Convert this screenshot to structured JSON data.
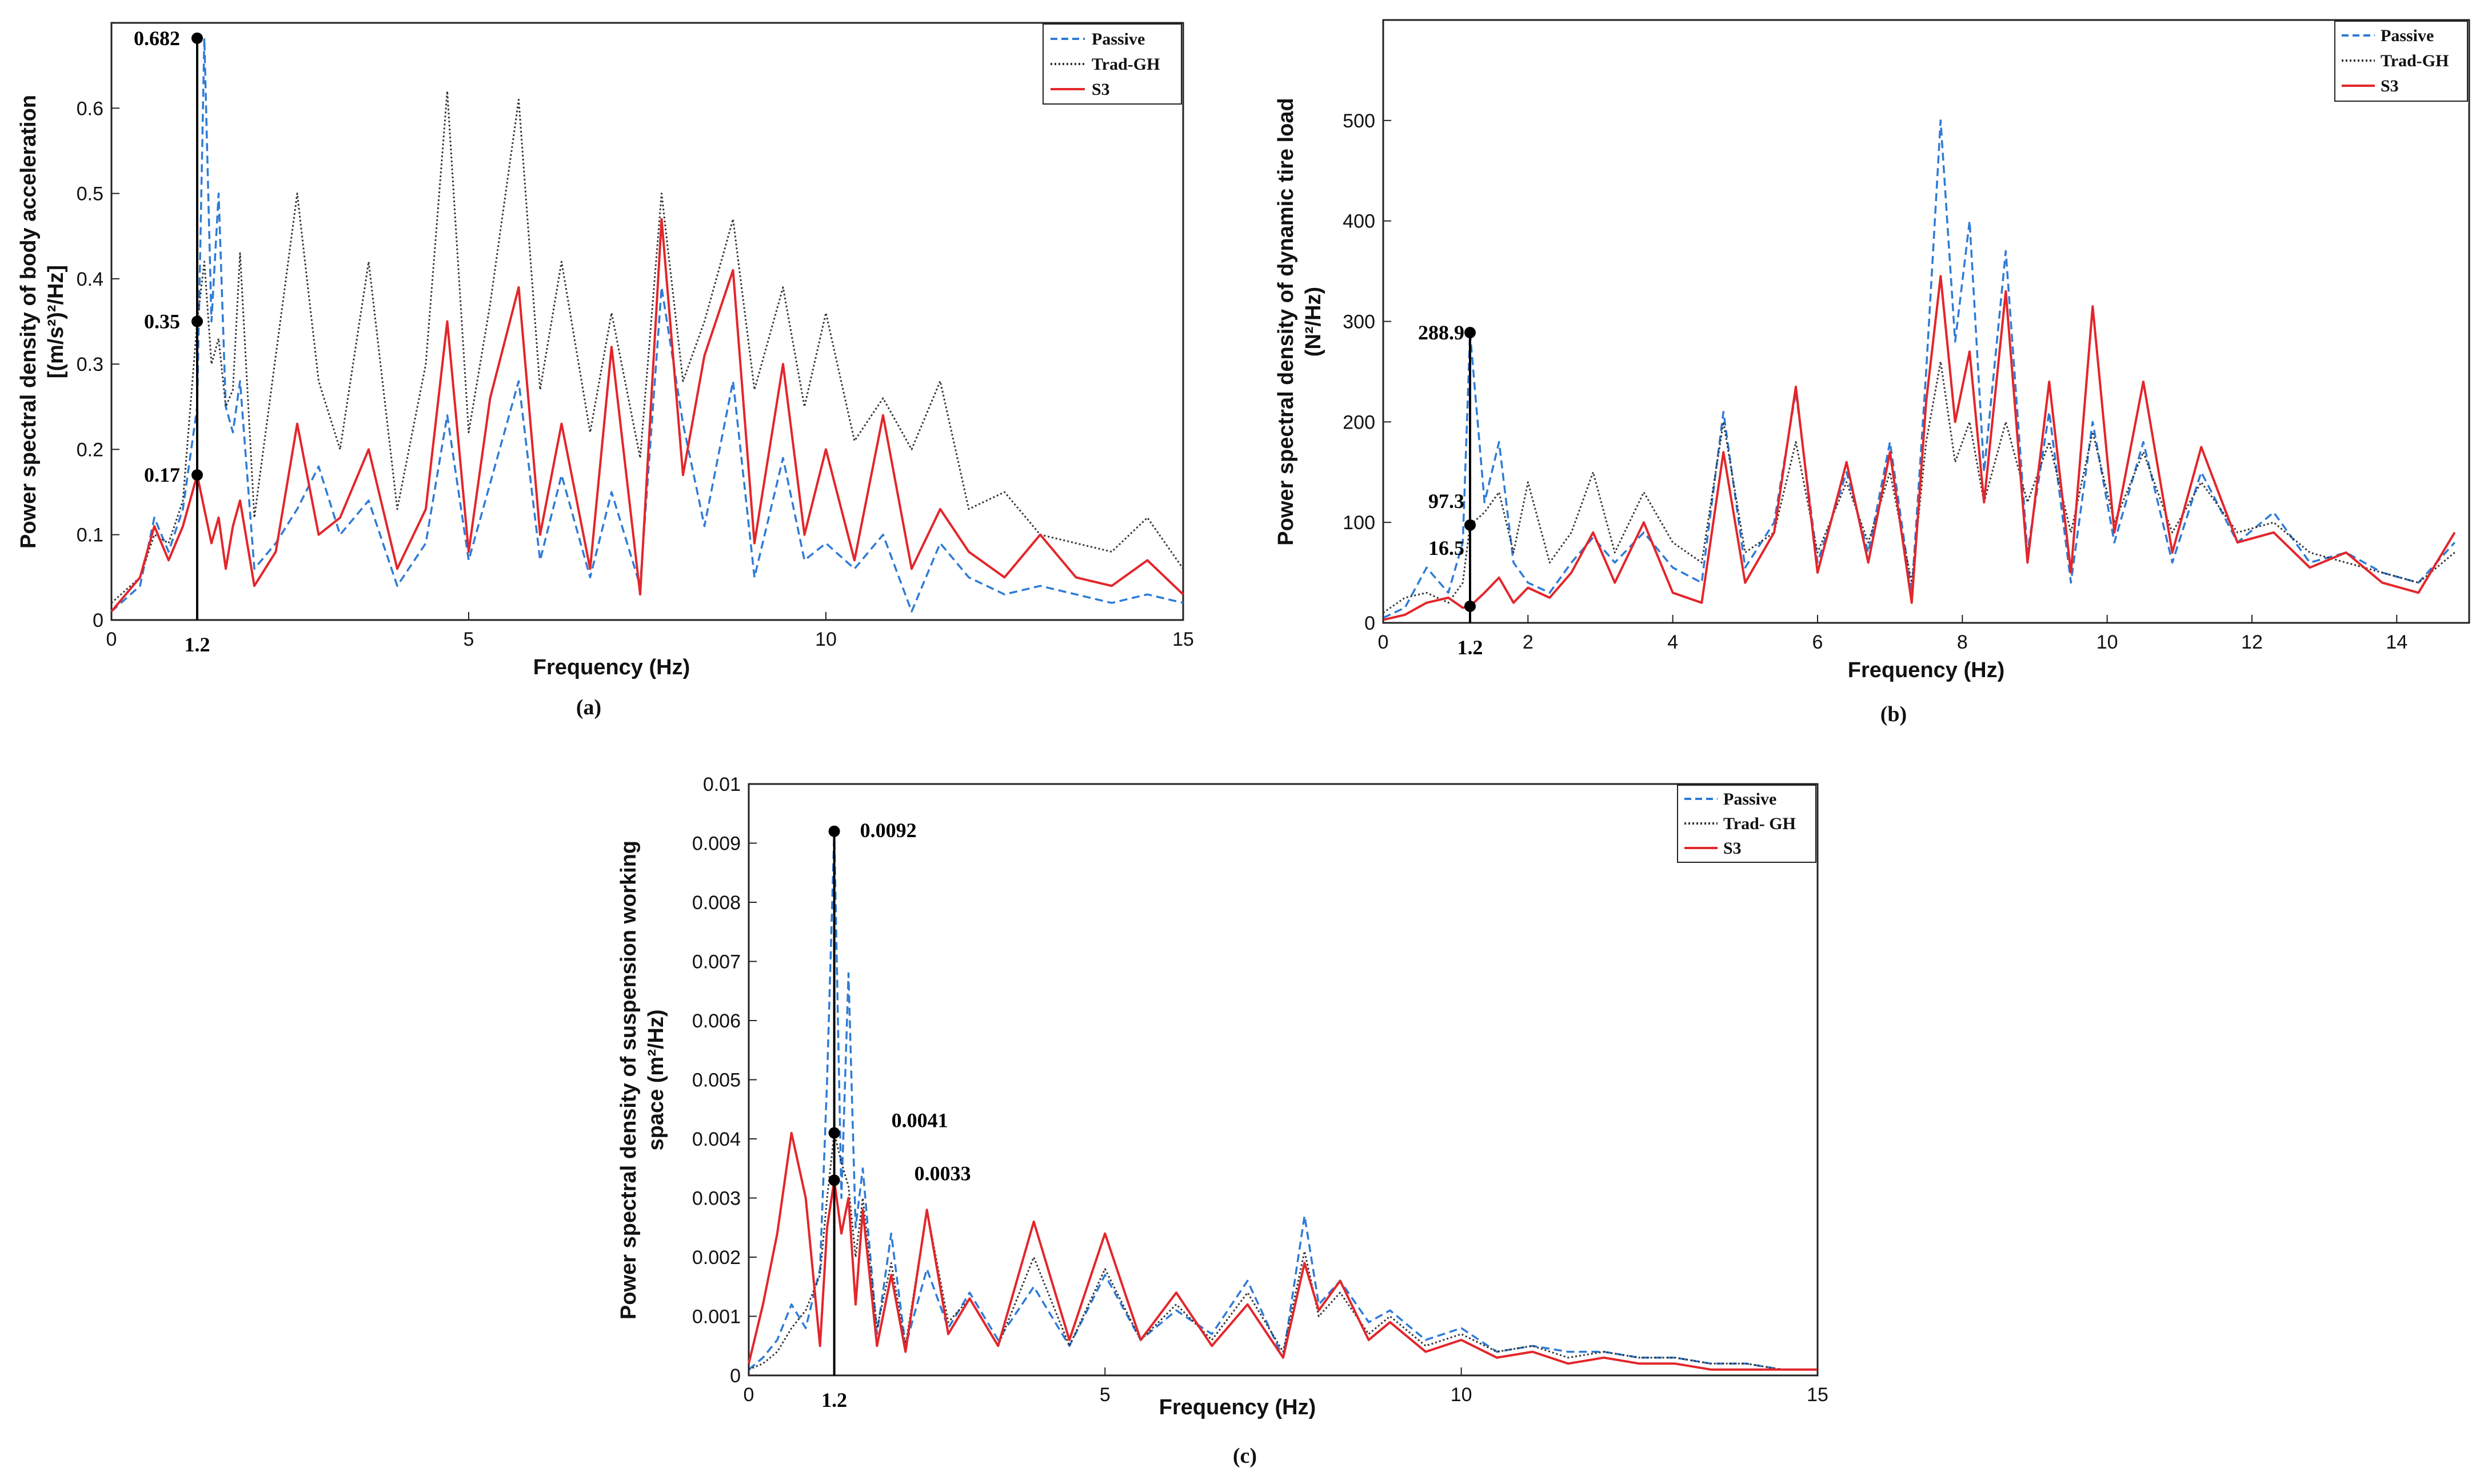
{
  "colors": {
    "passive": "#2e7bd6",
    "trad_gh": "#333333",
    "s3": "#e3262b",
    "marker": "#000000"
  },
  "chart_data": [
    {
      "id": "a",
      "type": "line",
      "panel_label": "(a)",
      "xlabel": "Frequency (Hz)",
      "ylabel_line1": "Power spectral density of body acceleration",
      "ylabel_line2": "[(m/s²)²/Hz]",
      "xlim": [
        0,
        15
      ],
      "ylim": [
        0,
        0.7
      ],
      "xticks": [
        0,
        5,
        10,
        15
      ],
      "xtick_labels": [
        "0",
        "5",
        "10",
        "15"
      ],
      "yticks": [
        0,
        0.1,
        0.2,
        0.3,
        0.4,
        0.5,
        0.6
      ],
      "ytick_labels": [
        "0",
        "0.1",
        "0.2",
        "0.3",
        "0.4",
        "0.5",
        "0.6"
      ],
      "legend_position": "top-right",
      "marker_x": 1.2,
      "marker_x_label": "1.2",
      "annotations": [
        {
          "label": "0.682",
          "y": 0.682
        },
        {
          "label": "0.35",
          "y": 0.35
        },
        {
          "label": "0.17",
          "y": 0.17
        }
      ],
      "series": [
        {
          "name": "Passive",
          "style": "dashed",
          "x": [
            0,
            0.4,
            0.6,
            0.8,
            1.0,
            1.2,
            1.3,
            1.4,
            1.5,
            1.6,
            1.7,
            1.8,
            2.0,
            2.3,
            2.6,
            2.9,
            3.2,
            3.6,
            4.0,
            4.4,
            4.7,
            5.0,
            5.3,
            5.7,
            6.0,
            6.3,
            6.7,
            7.0,
            7.4,
            7.7,
            8.0,
            8.3,
            8.7,
            9.0,
            9.4,
            9.7,
            10.0,
            10.4,
            10.8,
            11.2,
            11.6,
            12.0,
            12.5,
            13.0,
            13.5,
            14.0,
            14.5,
            15.0
          ],
          "y": [
            0.01,
            0.04,
            0.12,
            0.08,
            0.13,
            0.25,
            0.682,
            0.35,
            0.5,
            0.25,
            0.22,
            0.28,
            0.06,
            0.09,
            0.13,
            0.18,
            0.1,
            0.14,
            0.04,
            0.09,
            0.24,
            0.07,
            0.16,
            0.28,
            0.07,
            0.17,
            0.05,
            0.15,
            0.04,
            0.39,
            0.23,
            0.11,
            0.28,
            0.05,
            0.19,
            0.07,
            0.09,
            0.06,
            0.1,
            0.01,
            0.09,
            0.05,
            0.03,
            0.04,
            0.03,
            0.02,
            0.03,
            0.02
          ]
        },
        {
          "name": "Trad-GH",
          "style": "dotted",
          "x": [
            0,
            0.4,
            0.6,
            0.8,
            1.0,
            1.2,
            1.3,
            1.4,
            1.5,
            1.6,
            1.7,
            1.8,
            2.0,
            2.3,
            2.6,
            2.9,
            3.2,
            3.6,
            4.0,
            4.4,
            4.7,
            5.0,
            5.3,
            5.7,
            6.0,
            6.3,
            6.7,
            7.0,
            7.4,
            7.7,
            8.0,
            8.3,
            8.7,
            9.0,
            9.4,
            9.7,
            10.0,
            10.4,
            10.8,
            11.2,
            11.6,
            12.0,
            12.5,
            13.0,
            13.5,
            14.0,
            14.5,
            15.0
          ],
          "y": [
            0.02,
            0.05,
            0.1,
            0.09,
            0.14,
            0.35,
            0.42,
            0.3,
            0.33,
            0.25,
            0.27,
            0.43,
            0.12,
            0.31,
            0.5,
            0.28,
            0.2,
            0.42,
            0.13,
            0.3,
            0.62,
            0.22,
            0.37,
            0.61,
            0.27,
            0.42,
            0.22,
            0.36,
            0.19,
            0.5,
            0.28,
            0.35,
            0.47,
            0.27,
            0.39,
            0.25,
            0.36,
            0.21,
            0.26,
            0.2,
            0.28,
            0.13,
            0.15,
            0.1,
            0.09,
            0.08,
            0.12,
            0.06
          ]
        },
        {
          "name": "S3",
          "style": "solid",
          "x": [
            0,
            0.4,
            0.6,
            0.8,
            1.0,
            1.2,
            1.3,
            1.4,
            1.5,
            1.6,
            1.7,
            1.8,
            2.0,
            2.3,
            2.6,
            2.9,
            3.2,
            3.6,
            4.0,
            4.4,
            4.7,
            5.0,
            5.3,
            5.7,
            6.0,
            6.3,
            6.7,
            7.0,
            7.4,
            7.7,
            8.0,
            8.3,
            8.7,
            9.0,
            9.4,
            9.7,
            10.0,
            10.4,
            10.8,
            11.2,
            11.6,
            12.0,
            12.5,
            13.0,
            13.5,
            14.0,
            14.5,
            15.0
          ],
          "y": [
            0.01,
            0.05,
            0.11,
            0.07,
            0.11,
            0.17,
            0.13,
            0.09,
            0.12,
            0.06,
            0.11,
            0.14,
            0.04,
            0.08,
            0.23,
            0.1,
            0.12,
            0.2,
            0.06,
            0.13,
            0.35,
            0.08,
            0.26,
            0.39,
            0.1,
            0.23,
            0.06,
            0.32,
            0.03,
            0.47,
            0.17,
            0.31,
            0.41,
            0.09,
            0.3,
            0.1,
            0.2,
            0.07,
            0.24,
            0.06,
            0.13,
            0.08,
            0.05,
            0.1,
            0.05,
            0.04,
            0.07,
            0.03
          ]
        }
      ]
    },
    {
      "id": "b",
      "type": "line",
      "panel_label": "(b)",
      "xlabel": "Frequency (Hz)",
      "ylabel_line1": "Power spectral density of dynamic tire load",
      "ylabel_line2": "(N²/Hz)",
      "xlim": [
        0,
        15
      ],
      "ylim": [
        0,
        600
      ],
      "xticks": [
        0,
        2,
        4,
        6,
        8,
        10,
        12,
        14
      ],
      "xtick_labels": [
        "0",
        "2",
        "4",
        "6",
        "8",
        "10",
        "12",
        "14"
      ],
      "yticks": [
        0,
        100,
        200,
        300,
        400,
        500
      ],
      "ytick_labels": [
        "0",
        "100",
        "200",
        "300",
        "400",
        "500"
      ],
      "legend_position": "top-right",
      "marker_x": 1.2,
      "marker_x_label": "1.2",
      "annotations": [
        {
          "label": "288.9",
          "y": 288.9
        },
        {
          "label": "97.3",
          "y": 97.3
        },
        {
          "label": "16.5",
          "y": 16.5
        }
      ],
      "series": [
        {
          "name": "Passive",
          "style": "dashed",
          "x": [
            0,
            0.3,
            0.6,
            0.9,
            1.1,
            1.2,
            1.4,
            1.6,
            1.8,
            2.0,
            2.3,
            2.6,
            2.9,
            3.2,
            3.6,
            4.0,
            4.4,
            4.7,
            5.0,
            5.4,
            5.7,
            6.0,
            6.4,
            6.7,
            7.0,
            7.3,
            7.5,
            7.7,
            7.9,
            8.1,
            8.3,
            8.6,
            8.9,
            9.2,
            9.5,
            9.8,
            10.1,
            10.5,
            10.9,
            11.3,
            11.8,
            12.3,
            12.8,
            13.3,
            13.8,
            14.3,
            14.8
          ],
          "y": [
            5,
            15,
            55,
            30,
            80,
            288.9,
            120,
            180,
            60,
            40,
            30,
            60,
            85,
            60,
            90,
            55,
            40,
            210,
            55,
            100,
            230,
            60,
            150,
            70,
            180,
            30,
            250,
            500,
            280,
            400,
            150,
            370,
            70,
            210,
            40,
            200,
            80,
            180,
            60,
            150,
            80,
            110,
            60,
            70,
            50,
            40,
            80
          ]
        },
        {
          "name": "Trad-GH",
          "style": "dotted",
          "x": [
            0,
            0.3,
            0.6,
            0.9,
            1.1,
            1.2,
            1.4,
            1.6,
            1.8,
            2.0,
            2.3,
            2.6,
            2.9,
            3.2,
            3.6,
            4.0,
            4.4,
            4.7,
            5.0,
            5.4,
            5.7,
            6.0,
            6.4,
            6.7,
            7.0,
            7.3,
            7.5,
            7.7,
            7.9,
            8.1,
            8.3,
            8.6,
            8.9,
            9.2,
            9.5,
            9.8,
            10.1,
            10.5,
            10.9,
            11.3,
            11.8,
            12.3,
            12.8,
            13.3,
            13.8,
            14.3,
            14.8
          ],
          "y": [
            10,
            25,
            30,
            20,
            40,
            97.3,
            110,
            130,
            70,
            140,
            60,
            90,
            150,
            70,
            130,
            80,
            60,
            200,
            70,
            90,
            180,
            70,
            140,
            80,
            150,
            40,
            180,
            260,
            160,
            200,
            120,
            200,
            120,
            180,
            90,
            190,
            100,
            170,
            90,
            140,
            90,
            100,
            70,
            60,
            50,
            40,
            70
          ]
        },
        {
          "name": "S3",
          "style": "solid",
          "x": [
            0,
            0.3,
            0.6,
            0.9,
            1.1,
            1.2,
            1.4,
            1.6,
            1.8,
            2.0,
            2.3,
            2.6,
            2.9,
            3.2,
            3.6,
            4.0,
            4.4,
            4.7,
            5.0,
            5.4,
            5.7,
            6.0,
            6.4,
            6.7,
            7.0,
            7.3,
            7.5,
            7.7,
            7.9,
            8.1,
            8.3,
            8.6,
            8.9,
            9.2,
            9.5,
            9.8,
            10.1,
            10.5,
            10.9,
            11.3,
            11.8,
            12.3,
            12.8,
            13.3,
            13.8,
            14.3,
            14.8
          ],
          "y": [
            3,
            8,
            20,
            25,
            15,
            16.5,
            30,
            45,
            20,
            35,
            25,
            50,
            90,
            40,
            100,
            30,
            20,
            170,
            40,
            90,
            235,
            50,
            160,
            60,
            170,
            20,
            220,
            345,
            200,
            270,
            120,
            330,
            60,
            240,
            50,
            315,
            90,
            240,
            70,
            175,
            80,
            90,
            55,
            70,
            40,
            30,
            90
          ]
        }
      ]
    },
    {
      "id": "c",
      "type": "line",
      "panel_label": "(c)",
      "xlabel": "Frequency (Hz)",
      "ylabel_line1": "Power spectral density of suspension working",
      "ylabel_line2": "space (m²/Hz)",
      "xlim": [
        0,
        15
      ],
      "ylim": [
        0,
        0.01
      ],
      "xticks": [
        0,
        5,
        10,
        15
      ],
      "xtick_labels": [
        "0",
        "5",
        "10",
        "15"
      ],
      "yticks": [
        0,
        0.001,
        0.002,
        0.003,
        0.004,
        0.005,
        0.006,
        0.007,
        0.008,
        0.009,
        0.01
      ],
      "ytick_labels": [
        "0",
        "0.001",
        "0.002",
        "0.003",
        "0.004",
        "0.005",
        "0.006",
        "0.007",
        "0.008",
        "0.009",
        "0.01"
      ],
      "legend_position": "top-right",
      "marker_x": 1.2,
      "marker_x_label": "1.2",
      "annotations": [
        {
          "label": "0.0092",
          "y": 0.0092
        },
        {
          "label": "0.0041",
          "y": 0.0041
        },
        {
          "label": "0.0033",
          "y": 0.0033
        }
      ],
      "series": [
        {
          "name": "Passive",
          "style": "dashed",
          "x": [
            0,
            0.2,
            0.4,
            0.6,
            0.8,
            1.0,
            1.1,
            1.2,
            1.3,
            1.4,
            1.5,
            1.6,
            1.8,
            2.0,
            2.2,
            2.5,
            2.8,
            3.1,
            3.5,
            4.0,
            4.5,
            5.0,
            5.5,
            6.0,
            6.5,
            7.0,
            7.5,
            7.8,
            8.0,
            8.3,
            8.7,
            9.0,
            9.5,
            10.0,
            10.5,
            11.0,
            11.5,
            12.0,
            12.5,
            13.0,
            13.5,
            14.0,
            14.5,
            15.0
          ],
          "y": [
            0.0001,
            0.0003,
            0.0006,
            0.0012,
            0.0008,
            0.0018,
            0.005,
            0.0092,
            0.003,
            0.0068,
            0.0025,
            0.0035,
            0.0007,
            0.0024,
            0.0005,
            0.0018,
            0.0008,
            0.0014,
            0.0006,
            0.0015,
            0.0005,
            0.0017,
            0.0006,
            0.0011,
            0.0007,
            0.0016,
            0.0003,
            0.0027,
            0.0012,
            0.0016,
            0.0009,
            0.0011,
            0.0006,
            0.0008,
            0.0004,
            0.0005,
            0.0004,
            0.0004,
            0.0003,
            0.0003,
            0.0002,
            0.0002,
            0.0001,
            0.0001
          ]
        },
        {
          "name": "Trad- GH",
          "style": "dotted",
          "x": [
            0,
            0.2,
            0.4,
            0.6,
            0.8,
            1.0,
            1.1,
            1.2,
            1.3,
            1.4,
            1.5,
            1.6,
            1.8,
            2.0,
            2.2,
            2.5,
            2.8,
            3.1,
            3.5,
            4.0,
            4.5,
            5.0,
            5.5,
            6.0,
            6.5,
            7.0,
            7.5,
            7.8,
            8.0,
            8.3,
            8.7,
            9.0,
            9.5,
            10.0,
            10.5,
            11.0,
            11.5,
            12.0,
            12.5,
            13.0,
            13.5,
            14.0,
            14.5,
            15.0
          ],
          "y": [
            0.0001,
            0.0002,
            0.0004,
            0.0008,
            0.0011,
            0.0017,
            0.003,
            0.0041,
            0.0036,
            0.0032,
            0.002,
            0.003,
            0.0008,
            0.0019,
            0.0005,
            0.0028,
            0.0009,
            0.0013,
            0.0005,
            0.002,
            0.0005,
            0.0018,
            0.0006,
            0.0012,
            0.0006,
            0.0014,
            0.0004,
            0.0021,
            0.001,
            0.0014,
            0.0007,
            0.001,
            0.0005,
            0.0007,
            0.0004,
            0.0005,
            0.0003,
            0.0004,
            0.0003,
            0.0003,
            0.0002,
            0.0002,
            0.0001,
            0.0001
          ]
        },
        {
          "name": "S3",
          "style": "solid",
          "x": [
            0,
            0.2,
            0.4,
            0.6,
            0.8,
            1.0,
            1.1,
            1.2,
            1.3,
            1.4,
            1.5,
            1.6,
            1.8,
            2.0,
            2.2,
            2.5,
            2.8,
            3.1,
            3.5,
            4.0,
            4.5,
            5.0,
            5.5,
            6.0,
            6.5,
            7.0,
            7.5,
            7.8,
            8.0,
            8.3,
            8.7,
            9.0,
            9.5,
            10.0,
            10.5,
            11.0,
            11.5,
            12.0,
            12.5,
            13.0,
            13.5,
            14.0,
            14.5,
            15.0
          ],
          "y": [
            0.0002,
            0.0012,
            0.0024,
            0.0041,
            0.003,
            0.0005,
            0.0025,
            0.0033,
            0.0024,
            0.003,
            0.0012,
            0.0028,
            0.0005,
            0.0017,
            0.0004,
            0.0028,
            0.0007,
            0.0013,
            0.0005,
            0.0026,
            0.0006,
            0.0024,
            0.0006,
            0.0014,
            0.0005,
            0.0012,
            0.0003,
            0.0019,
            0.0011,
            0.0016,
            0.0006,
            0.0009,
            0.0004,
            0.0006,
            0.0003,
            0.0004,
            0.0002,
            0.0003,
            0.0002,
            0.0002,
            0.0001,
            0.0001,
            0.0001,
            0.0001
          ]
        }
      ]
    }
  ]
}
